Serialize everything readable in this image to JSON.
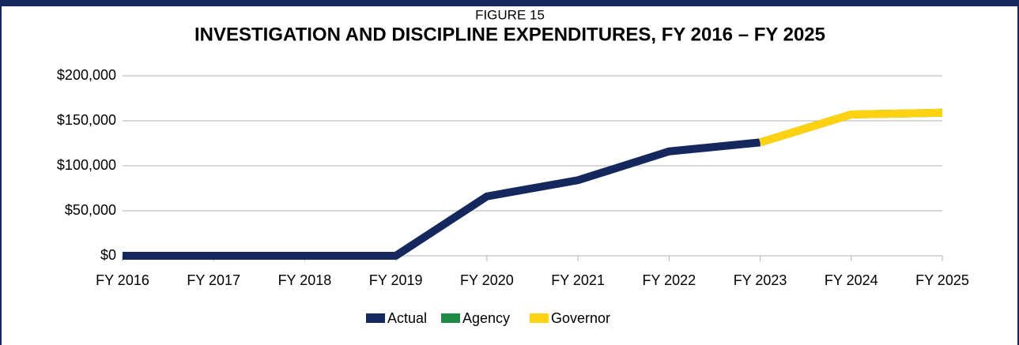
{
  "chart_data": {
    "type": "line",
    "supertitle": "FIGURE 15",
    "title": "INVESTIGATION AND DISCIPLINE EXPENDITURES, FY 2016 – FY 2025",
    "categories": [
      "FY 2016",
      "FY 2017",
      "FY 2018",
      "FY 2019",
      "FY 2020",
      "FY 2021",
      "FY 2022",
      "FY 2023",
      "FY 2024",
      "FY 2025"
    ],
    "series": [
      {
        "name": "Actual",
        "color": "#14285e",
        "values": [
          0,
          0,
          0,
          0,
          66000,
          84000,
          116000,
          126000,
          null,
          null
        ]
      },
      {
        "name": "Agency",
        "color": "#1e8a46",
        "values": [
          null,
          null,
          null,
          null,
          null,
          null,
          null,
          126000,
          157000,
          159000
        ]
      },
      {
        "name": "Governor",
        "color": "#ffd211",
        "values": [
          null,
          null,
          null,
          null,
          null,
          null,
          null,
          126000,
          157000,
          159000
        ]
      }
    ],
    "ylim": [
      0,
      200000
    ],
    "yticks": [
      {
        "value": 0,
        "label": "$0"
      },
      {
        "value": 50000,
        "label": "$50,000"
      },
      {
        "value": 100000,
        "label": "$100,000"
      },
      {
        "value": 150000,
        "label": "$150,000"
      },
      {
        "value": 200000,
        "label": "$200,000"
      }
    ],
    "grid": true,
    "legend": "bottom"
  }
}
